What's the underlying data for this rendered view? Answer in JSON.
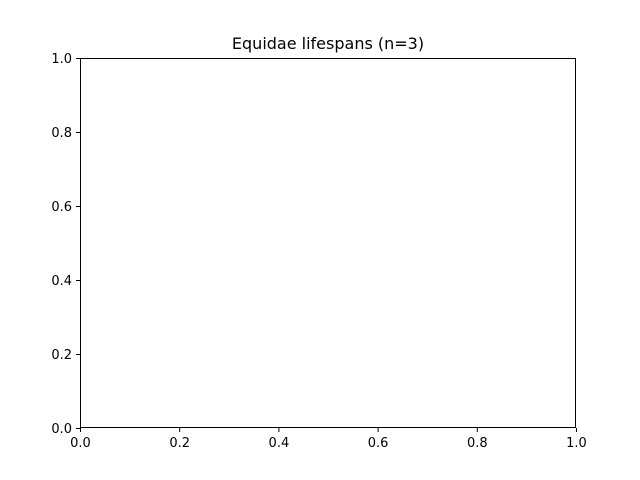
{
  "chart_data": {
    "type": "scatter",
    "title": "Equidae lifespans (n=3)",
    "xlabel": "",
    "ylabel": "",
    "xlim": [
      0.0,
      1.0
    ],
    "ylim": [
      0.0,
      1.0
    ],
    "x_ticks": [
      "0.0",
      "0.2",
      "0.4",
      "0.6",
      "0.8",
      "1.0"
    ],
    "y_ticks": [
      "0.0",
      "0.2",
      "0.4",
      "0.6",
      "0.8",
      "1.0"
    ],
    "grid": false,
    "legend": "none",
    "series": []
  }
}
